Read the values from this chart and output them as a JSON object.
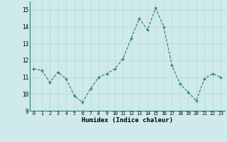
{
  "x": [
    0,
    1,
    2,
    3,
    4,
    5,
    6,
    7,
    8,
    9,
    10,
    11,
    12,
    13,
    14,
    15,
    16,
    17,
    18,
    19,
    20,
    21,
    22,
    23
  ],
  "y": [
    11.5,
    11.4,
    10.7,
    11.3,
    10.9,
    9.9,
    9.5,
    10.3,
    11.0,
    11.2,
    11.5,
    12.1,
    13.3,
    14.5,
    13.8,
    15.1,
    14.0,
    11.7,
    10.6,
    10.1,
    9.6,
    10.9,
    11.2,
    11.0
  ],
  "xlabel": "Humidex (Indice chaleur)",
  "ylim": [
    9,
    15.5
  ],
  "xlim": [
    -0.5,
    23.5
  ],
  "yticks": [
    9,
    10,
    11,
    12,
    13,
    14,
    15
  ],
  "xticks": [
    0,
    1,
    2,
    3,
    4,
    5,
    6,
    7,
    8,
    9,
    10,
    11,
    12,
    13,
    14,
    15,
    16,
    17,
    18,
    19,
    20,
    21,
    22,
    23
  ],
  "line_color": "#2e7d6e",
  "marker_color": "#2e7d6e",
  "bg_color": "#ceeaea",
  "grid_color": "#b8d8d8",
  "title": ""
}
